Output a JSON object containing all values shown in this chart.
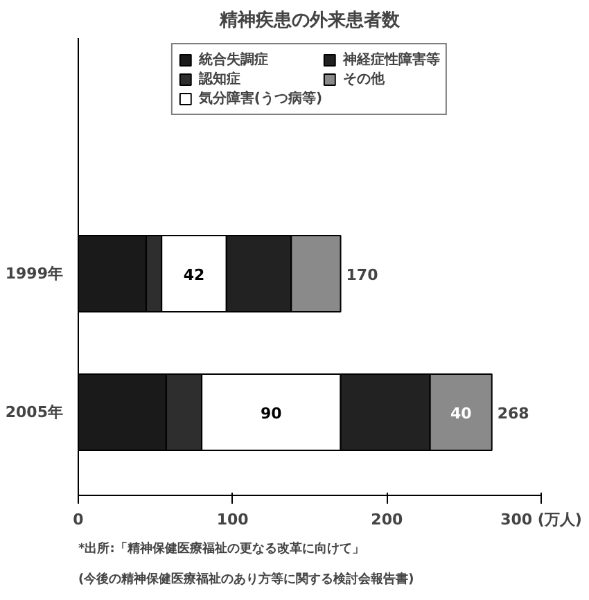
{
  "chart_data": {
    "type": "bar",
    "orientation": "horizontal",
    "stacked": true,
    "title": "精神疾患の外来患者数",
    "categories": [
      "1999年",
      "2005年"
    ],
    "series": [
      {
        "name": "統合失調症",
        "color": "#1a1a1a",
        "values": [
          44,
          57
        ],
        "value_labels": [
          null,
          null
        ]
      },
      {
        "name": "認知症",
        "color": "#2e2e2e",
        "values": [
          10,
          23
        ],
        "value_labels": [
          null,
          null
        ]
      },
      {
        "name": "気分障害(うつ病等)",
        "color": "#ffffff",
        "values": [
          42,
          90
        ],
        "value_labels": [
          "42",
          "90"
        ]
      },
      {
        "name": "神経症性障害等",
        "color": "#222222",
        "values": [
          42,
          58
        ],
        "value_labels": [
          null,
          null
        ]
      },
      {
        "name": "その他",
        "color": "#8a8a8a",
        "values": [
          32,
          40
        ],
        "value_labels": [
          null,
          "40"
        ]
      }
    ],
    "totals": [
      "170",
      "268"
    ],
    "xlim": [
      0,
      300
    ],
    "xticks": [
      0,
      100,
      200,
      {
        "value": 300,
        "label": "300 (万人)"
      }
    ],
    "grid": false,
    "legend": "top",
    "annotations": [
      "*出所:「精神保健医療福祉の更なる改革に向けて」",
      "(今後の精神保健医療福祉のあり方等に関する検討会報告書)"
    ]
  }
}
